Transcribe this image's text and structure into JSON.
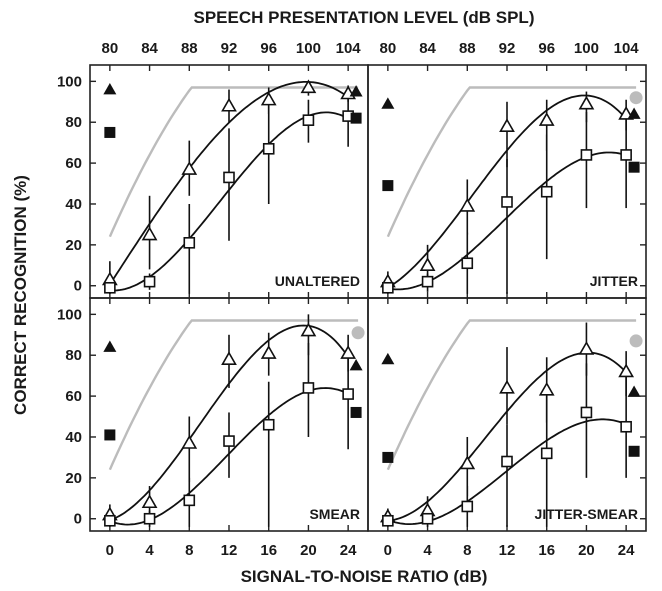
{
  "chart_data": {
    "type": "scatter",
    "title": "SPEECH PRESENTATION LEVEL (dB SPL)",
    "xlabel": "SIGNAL-TO-NOISE RATIO (dB)",
    "ylabel": "CORRECT RECOGNITION (%)",
    "x_ticks": [
      0,
      4,
      8,
      12,
      16,
      20,
      24
    ],
    "top_ticks": [
      80,
      84,
      88,
      92,
      96,
      100,
      104
    ],
    "y_ticks": [
      0,
      20,
      40,
      60,
      80,
      100
    ],
    "xlim": [
      -2,
      26
    ],
    "ylim": [
      -6,
      108
    ],
    "panels": [
      {
        "condition": "UNALTERED",
        "triangles": [
          {
            "x": 0,
            "y": 3,
            "lo": -4,
            "hi": 12
          },
          {
            "x": 4,
            "y": 25,
            "lo": 8,
            "hi": 44
          },
          {
            "x": 8,
            "y": 57,
            "lo": 44,
            "hi": 71
          },
          {
            "x": 12,
            "y": 88,
            "lo": 80,
            "hi": 96
          },
          {
            "x": 16,
            "y": 91,
            "lo": 84,
            "hi": 97
          },
          {
            "x": 20,
            "y": 97,
            "lo": 93,
            "hi": 100
          },
          {
            "x": 24,
            "y": 94,
            "lo": 90,
            "hi": 98
          }
        ],
        "squares": [
          {
            "x": 0,
            "y": -1,
            "lo": -4,
            "hi": 2
          },
          {
            "x": 4,
            "y": 2,
            "lo": -2,
            "hi": 6
          },
          {
            "x": 8,
            "y": 21,
            "lo": -4,
            "hi": 40
          },
          {
            "x": 12,
            "y": 53,
            "lo": 22,
            "hi": 77
          },
          {
            "x": 16,
            "y": 67,
            "lo": 40,
            "hi": 90
          },
          {
            "x": 20,
            "y": 81,
            "lo": 70,
            "hi": 91
          },
          {
            "x": 24,
            "y": 83,
            "lo": 68,
            "hi": 92
          }
        ],
        "filled_triangles": [
          {
            "x": 0,
            "y": 96
          },
          {
            "x": 24.8,
            "y": 95
          }
        ],
        "filled_squares": [
          {
            "x": 0,
            "y": 75
          },
          {
            "x": 24.8,
            "y": 82
          }
        ],
        "gray_circle": null
      },
      {
        "condition": "JITTER",
        "triangles": [
          {
            "x": 0,
            "y": 2,
            "lo": -3,
            "hi": 7
          },
          {
            "x": 4,
            "y": 10,
            "lo": 3,
            "hi": 20
          },
          {
            "x": 8,
            "y": 39,
            "lo": 25,
            "hi": 52
          },
          {
            "x": 12,
            "y": 78,
            "lo": 58,
            "hi": 90
          },
          {
            "x": 16,
            "y": 81,
            "lo": 66,
            "hi": 91
          },
          {
            "x": 20,
            "y": 89,
            "lo": 80,
            "hi": 95
          },
          {
            "x": 24,
            "y": 84,
            "lo": 76,
            "hi": 91
          }
        ],
        "squares": [
          {
            "x": 0,
            "y": -1,
            "lo": -4,
            "hi": 1
          },
          {
            "x": 4,
            "y": 2,
            "lo": -3,
            "hi": 6
          },
          {
            "x": 8,
            "y": 11,
            "lo": -4,
            "hi": 26
          },
          {
            "x": 12,
            "y": 41,
            "lo": -4,
            "hi": 62
          },
          {
            "x": 16,
            "y": 46,
            "lo": 13,
            "hi": 74
          },
          {
            "x": 20,
            "y": 64,
            "lo": 38,
            "hi": 85
          },
          {
            "x": 24,
            "y": 64,
            "lo": 38,
            "hi": 83
          }
        ],
        "filled_triangles": [
          {
            "x": 0,
            "y": 89
          },
          {
            "x": 24.8,
            "y": 84
          }
        ],
        "filled_squares": [
          {
            "x": 0,
            "y": 49
          },
          {
            "x": 24.8,
            "y": 58
          }
        ],
        "gray_circle": {
          "x": 25,
          "y": 92
        }
      },
      {
        "condition": "SMEAR",
        "triangles": [
          {
            "x": 0,
            "y": 2,
            "lo": -3,
            "hi": 7
          },
          {
            "x": 4,
            "y": 8,
            "lo": 0,
            "hi": 16
          },
          {
            "x": 8,
            "y": 37,
            "lo": 18,
            "hi": 50
          },
          {
            "x": 12,
            "y": 78,
            "lo": 64,
            "hi": 90
          },
          {
            "x": 16,
            "y": 81,
            "lo": 70,
            "hi": 91
          },
          {
            "x": 20,
            "y": 92,
            "lo": 80,
            "hi": 100
          },
          {
            "x": 24,
            "y": 81,
            "lo": 72,
            "hi": 90
          }
        ],
        "squares": [
          {
            "x": 0,
            "y": -1,
            "lo": -4,
            "hi": 2
          },
          {
            "x": 4,
            "y": 0,
            "lo": -4,
            "hi": 4
          },
          {
            "x": 8,
            "y": 9,
            "lo": -4,
            "hi": 20
          },
          {
            "x": 12,
            "y": 38,
            "lo": 20,
            "hi": 52
          },
          {
            "x": 16,
            "y": 46,
            "lo": -4,
            "hi": 67
          },
          {
            "x": 20,
            "y": 64,
            "lo": 40,
            "hi": 86
          },
          {
            "x": 24,
            "y": 61,
            "lo": 34,
            "hi": 84
          }
        ],
        "filled_triangles": [
          {
            "x": 0,
            "y": 84
          },
          {
            "x": 24.8,
            "y": 75
          }
        ],
        "filled_squares": [
          {
            "x": 0,
            "y": 41
          },
          {
            "x": 24.8,
            "y": 52
          }
        ],
        "gray_circle": {
          "x": 25,
          "y": 91
        }
      },
      {
        "condition": "JITTER-SMEAR",
        "triangles": [
          {
            "x": 0,
            "y": 1,
            "lo": -3,
            "hi": 5
          },
          {
            "x": 4,
            "y": 4,
            "lo": -1,
            "hi": 11
          },
          {
            "x": 8,
            "y": 27,
            "lo": 11,
            "hi": 40
          },
          {
            "x": 12,
            "y": 64,
            "lo": 46,
            "hi": 84
          },
          {
            "x": 16,
            "y": 63,
            "lo": 47,
            "hi": 79
          },
          {
            "x": 20,
            "y": 83,
            "lo": 70,
            "hi": 96
          },
          {
            "x": 24,
            "y": 72,
            "lo": 60,
            "hi": 82
          }
        ],
        "squares": [
          {
            "x": 0,
            "y": -1,
            "lo": -4,
            "hi": 1
          },
          {
            "x": 4,
            "y": 0,
            "lo": -4,
            "hi": 4
          },
          {
            "x": 8,
            "y": 6,
            "lo": -4,
            "hi": 16
          },
          {
            "x": 12,
            "y": 28,
            "lo": -4,
            "hi": 46
          },
          {
            "x": 16,
            "y": 32,
            "lo": -4,
            "hi": 60
          },
          {
            "x": 20,
            "y": 52,
            "lo": 20,
            "hi": 76
          },
          {
            "x": 24,
            "y": 45,
            "lo": 20,
            "hi": 70
          }
        ],
        "filled_triangles": [
          {
            "x": 0,
            "y": 78
          },
          {
            "x": 24.8,
            "y": 62
          }
        ],
        "filled_squares": [
          {
            "x": 0,
            "y": 30
          },
          {
            "x": 24.8,
            "y": 33
          }
        ],
        "gray_circle": {
          "x": 25,
          "y": 87
        }
      }
    ]
  }
}
